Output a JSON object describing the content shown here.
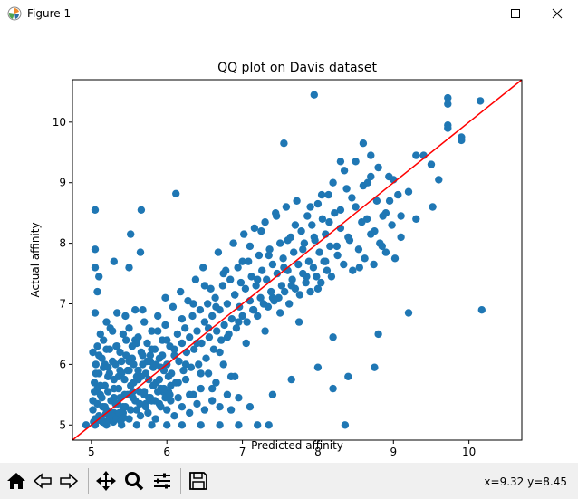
{
  "window": {
    "title": "Figure 1",
    "icons": {
      "app": "matplotlib-icon",
      "minimize": "minimize-icon",
      "maximize": "maximize-icon",
      "close": "close-icon"
    }
  },
  "toolbar": {
    "buttons": [
      {
        "name": "home-icon"
      },
      {
        "name": "back-arrow-icon"
      },
      {
        "name": "forward-arrow-icon"
      },
      {
        "name": "pan-icon"
      },
      {
        "name": "zoom-icon"
      },
      {
        "name": "configure-subplots-icon"
      },
      {
        "name": "save-icon"
      }
    ],
    "coords": "x=9.32 y=8.45"
  },
  "chart_data": {
    "type": "scatter",
    "title": "QQ plot on Davis dataset",
    "xlabel": "Predicted affinity",
    "ylabel": "Actual affinity",
    "xlim": [
      4.75,
      10.7
    ],
    "ylim": [
      4.75,
      10.7
    ],
    "xticks": [
      "5",
      "6",
      "7",
      "8",
      "9",
      "10"
    ],
    "yticks": [
      "5",
      "6",
      "7",
      "8",
      "9",
      "10"
    ],
    "grid": false,
    "marker_color": "#1f77b4",
    "reference_line": {
      "color": "#ff0000",
      "x": [
        4.75,
        10.7
      ],
      "y": [
        4.75,
        10.7
      ]
    },
    "points": [
      [
        4.93,
        5.0
      ],
      [
        5.05,
        5.0
      ],
      [
        5.2,
        5.0
      ],
      [
        5.4,
        5.0
      ],
      [
        5.6,
        5.0
      ],
      [
        5.8,
        5.0
      ],
      [
        6.0,
        5.0
      ],
      [
        6.2,
        5.0
      ],
      [
        6.45,
        5.0
      ],
      [
        6.7,
        5.0
      ],
      [
        6.95,
        5.0
      ],
      [
        7.2,
        5.0
      ],
      [
        7.35,
        5.0
      ],
      [
        8.36,
        5.0
      ],
      [
        5.05,
        8.55
      ],
      [
        5.05,
        7.9
      ],
      [
        5.05,
        7.6
      ],
      [
        5.08,
        7.2
      ],
      [
        5.05,
        6.85
      ],
      [
        5.1,
        7.45
      ],
      [
        5.3,
        7.7
      ],
      [
        5.5,
        7.6
      ],
      [
        5.52,
        8.15
      ],
      [
        5.66,
        8.55
      ],
      [
        5.65,
        7.85
      ],
      [
        5.02,
        6.2
      ],
      [
        5.08,
        5.6
      ],
      [
        5.12,
        6.5
      ],
      [
        5.15,
        5.3
      ],
      [
        5.18,
        6.0
      ],
      [
        5.22,
        5.8
      ],
      [
        5.25,
        6.6
      ],
      [
        5.3,
        5.45
      ],
      [
        5.33,
        6.3
      ],
      [
        5.38,
        5.9
      ],
      [
        5.42,
        5.2
      ],
      [
        5.45,
        6.8
      ],
      [
        5.5,
        6.05
      ],
      [
        5.55,
        5.55
      ],
      [
        5.58,
        6.4
      ],
      [
        5.62,
        5.75
      ],
      [
        5.68,
        6.9
      ],
      [
        5.72,
        5.35
      ],
      [
        5.78,
        6.15
      ],
      [
        5.82,
        5.65
      ],
      [
        5.88,
        6.55
      ],
      [
        5.92,
        5.95
      ],
      [
        5.98,
        7.1
      ],
      [
        6.05,
        5.4
      ],
      [
        6.1,
        6.25
      ],
      [
        6.15,
        5.7
      ],
      [
        6.2,
        6.75
      ],
      [
        6.25,
        6.0
      ],
      [
        6.3,
        5.5
      ],
      [
        6.35,
        7.0
      ],
      [
        6.4,
        6.35
      ],
      [
        6.45,
        5.85
      ],
      [
        6.5,
        7.3
      ],
      [
        6.55,
        6.6
      ],
      [
        6.6,
        5.6
      ],
      [
        6.65,
        6.95
      ],
      [
        6.7,
        6.2
      ],
      [
        6.75,
        7.5
      ],
      [
        6.8,
        6.45
      ],
      [
        6.85,
        5.8
      ],
      [
        6.9,
        7.15
      ],
      [
        6.95,
        6.7
      ],
      [
        7.0,
        7.7
      ],
      [
        7.05,
        6.35
      ],
      [
        7.1,
        7.95
      ],
      [
        7.15,
        6.9
      ],
      [
        7.2,
        7.4
      ],
      [
        7.25,
        8.2
      ],
      [
        7.3,
        6.55
      ],
      [
        7.35,
        7.8
      ],
      [
        7.4,
        7.1
      ],
      [
        7.45,
        8.45
      ],
      [
        7.5,
        6.85
      ],
      [
        7.55,
        7.6
      ],
      [
        7.6,
        8.05
      ],
      [
        7.65,
        7.3
      ],
      [
        7.7,
        8.3
      ],
      [
        7.75,
        6.7
      ],
      [
        7.8,
        7.9
      ],
      [
        7.85,
        7.45
      ],
      [
        7.9,
        8.6
      ],
      [
        7.95,
        8.1
      ],
      [
        8.0,
        7.25
      ],
      [
        8.05,
        8.8
      ],
      [
        8.1,
        7.7
      ],
      [
        8.15,
        8.35
      ],
      [
        8.2,
        9.0
      ],
      [
        8.25,
        7.95
      ],
      [
        8.3,
        8.55
      ],
      [
        8.35,
        9.2
      ],
      [
        8.4,
        8.1
      ],
      [
        8.45,
        8.75
      ],
      [
        8.5,
        9.35
      ],
      [
        8.55,
        7.6
      ],
      [
        8.6,
        8.95
      ],
      [
        8.65,
        8.4
      ],
      [
        8.7,
        9.1
      ],
      [
        8.75,
        8.2
      ],
      [
        8.8,
        9.25
      ],
      [
        8.9,
        8.5
      ],
      [
        9.0,
        9.05
      ],
      [
        8.85,
        7.95
      ],
      [
        8.95,
        8.7
      ],
      [
        9.1,
        8.45
      ],
      [
        9.2,
        8.85
      ],
      [
        9.3,
        9.45
      ],
      [
        9.4,
        9.45
      ],
      [
        9.5,
        9.3
      ],
      [
        9.6,
        9.05
      ],
      [
        9.52,
        8.6
      ],
      [
        9.3,
        8.4
      ],
      [
        9.2,
        6.85
      ],
      [
        9.72,
        10.4
      ],
      [
        9.72,
        10.3
      ],
      [
        9.72,
        9.95
      ],
      [
        9.72,
        9.9
      ],
      [
        9.9,
        9.75
      ],
      [
        9.9,
        9.7
      ],
      [
        10.15,
        10.35
      ],
      [
        10.17,
        6.9
      ],
      [
        7.95,
        10.45
      ],
      [
        7.55,
        9.65
      ],
      [
        6.12,
        8.82
      ],
      [
        8.6,
        9.65
      ],
      [
        8.7,
        9.45
      ],
      [
        8.3,
        9.35
      ],
      [
        8.2,
        6.45
      ],
      [
        8.8,
        6.5
      ],
      [
        8.0,
        5.95
      ],
      [
        8.2,
        5.6
      ],
      [
        8.75,
        5.95
      ],
      [
        8.4,
        5.8
      ],
      [
        7.4,
        5.5
      ],
      [
        7.65,
        5.75
      ],
      [
        7.1,
        5.3
      ],
      [
        5.05,
        5.1
      ],
      [
        5.1,
        5.15
      ],
      [
        5.15,
        5.05
      ],
      [
        5.2,
        5.25
      ],
      [
        5.25,
        5.1
      ],
      [
        5.3,
        5.2
      ],
      [
        5.35,
        5.35
      ],
      [
        5.4,
        5.15
      ],
      [
        5.45,
        5.3
      ],
      [
        5.5,
        5.1
      ],
      [
        5.55,
        5.45
      ],
      [
        5.6,
        5.25
      ],
      [
        5.65,
        5.15
      ],
      [
        5.7,
        5.5
      ],
      [
        5.75,
        5.2
      ],
      [
        5.8,
        5.4
      ],
      [
        5.85,
        5.1
      ],
      [
        5.9,
        5.35
      ],
      [
        5.95,
        5.55
      ],
      [
        6.0,
        5.25
      ],
      [
        6.05,
        5.65
      ],
      [
        6.1,
        5.15
      ],
      [
        6.15,
        5.45
      ],
      [
        6.2,
        5.3
      ],
      [
        6.25,
        5.75
      ],
      [
        6.3,
        5.2
      ],
      [
        6.35,
        5.5
      ],
      [
        6.4,
        5.35
      ],
      [
        6.45,
        5.6
      ],
      [
        6.5,
        5.25
      ],
      [
        6.55,
        5.85
      ],
      [
        6.6,
        5.4
      ],
      [
        6.65,
        5.7
      ],
      [
        6.7,
        5.3
      ],
      [
        6.75,
        6.0
      ],
      [
        6.8,
        5.5
      ],
      [
        6.85,
        5.25
      ],
      [
        6.9,
        5.8
      ],
      [
        6.95,
        5.45
      ],
      [
        5.02,
        5.4
      ],
      [
        5.04,
        5.7
      ],
      [
        5.06,
        6.0
      ],
      [
        5.08,
        6.3
      ],
      [
        5.1,
        5.85
      ],
      [
        5.12,
        5.5
      ],
      [
        5.14,
        6.1
      ],
      [
        5.16,
        6.4
      ],
      [
        5.18,
        5.65
      ],
      [
        5.2,
        6.7
      ],
      [
        5.22,
        5.95
      ],
      [
        5.24,
        6.25
      ],
      [
        5.26,
        5.4
      ],
      [
        5.28,
        6.55
      ],
      [
        5.3,
        5.75
      ],
      [
        5.32,
        6.0
      ],
      [
        5.34,
        6.85
      ],
      [
        5.36,
        5.6
      ],
      [
        5.38,
        6.2
      ],
      [
        5.4,
        5.85
      ],
      [
        5.42,
        6.5
      ],
      [
        5.44,
        5.5
      ],
      [
        5.46,
        6.15
      ],
      [
        5.48,
        5.9
      ],
      [
        5.5,
        6.6
      ],
      [
        5.52,
        5.65
      ],
      [
        5.54,
        6.3
      ],
      [
        5.56,
        6.0
      ],
      [
        5.58,
        6.9
      ],
      [
        5.6,
        5.8
      ],
      [
        5.62,
        6.45
      ],
      [
        5.64,
        5.55
      ],
      [
        5.66,
        6.2
      ],
      [
        5.68,
        6.0
      ],
      [
        5.7,
        6.7
      ],
      [
        5.72,
        5.85
      ],
      [
        5.74,
        6.35
      ],
      [
        5.76,
        5.45
      ],
      [
        5.78,
        6.05
      ],
      [
        5.8,
        6.55
      ],
      [
        5.82,
        5.95
      ],
      [
        5.84,
        6.25
      ],
      [
        5.86,
        5.7
      ],
      [
        5.88,
        6.8
      ],
      [
        5.9,
        6.1
      ],
      [
        5.92,
        5.6
      ],
      [
        5.94,
        6.4
      ],
      [
        5.96,
        5.9
      ],
      [
        5.98,
        6.65
      ],
      [
        6.0,
        6.0
      ],
      [
        6.02,
        5.55
      ],
      [
        6.04,
        6.3
      ],
      [
        6.06,
        5.85
      ],
      [
        6.08,
        6.95
      ],
      [
        6.1,
        6.15
      ],
      [
        6.12,
        5.7
      ],
      [
        6.14,
        6.5
      ],
      [
        6.16,
        6.05
      ],
      [
        6.18,
        7.2
      ],
      [
        6.2,
        6.35
      ],
      [
        6.22,
        5.9
      ],
      [
        6.24,
        6.6
      ],
      [
        6.26,
        6.2
      ],
      [
        6.28,
        7.05
      ],
      [
        6.3,
        6.45
      ],
      [
        6.32,
        5.95
      ],
      [
        6.34,
        6.8
      ],
      [
        6.36,
        6.25
      ],
      [
        6.38,
        7.4
      ],
      [
        6.4,
        6.55
      ],
      [
        6.42,
        6.0
      ],
      [
        6.44,
        6.9
      ],
      [
        6.46,
        6.35
      ],
      [
        6.48,
        7.6
      ],
      [
        6.5,
        6.7
      ],
      [
        6.52,
        6.1
      ],
      [
        6.54,
        7.0
      ],
      [
        6.56,
        6.45
      ],
      [
        6.58,
        7.25
      ],
      [
        6.6,
        6.8
      ],
      [
        6.62,
        6.25
      ],
      [
        6.64,
        7.1
      ],
      [
        6.66,
        6.55
      ],
      [
        6.68,
        7.85
      ],
      [
        6.7,
        6.9
      ],
      [
        6.72,
        6.4
      ],
      [
        6.74,
        7.3
      ],
      [
        6.76,
        6.65
      ],
      [
        6.78,
        7.55
      ],
      [
        6.8,
        7.0
      ],
      [
        6.82,
        6.5
      ],
      [
        6.84,
        7.4
      ],
      [
        6.86,
        6.75
      ],
      [
        6.88,
        8.0
      ],
      [
        6.9,
        7.15
      ],
      [
        6.92,
        6.6
      ],
      [
        6.94,
        7.6
      ],
      [
        6.96,
        6.95
      ],
      [
        6.98,
        7.35
      ],
      [
        7.0,
        6.8
      ],
      [
        7.02,
        8.15
      ],
      [
        7.04,
        7.25
      ],
      [
        7.06,
        6.7
      ],
      [
        7.08,
        7.7
      ],
      [
        7.1,
        7.05
      ],
      [
        7.12,
        7.45
      ],
      [
        7.14,
        6.9
      ],
      [
        7.16,
        8.25
      ],
      [
        7.18,
        7.3
      ],
      [
        7.2,
        6.8
      ],
      [
        7.22,
        7.8
      ],
      [
        7.24,
        7.1
      ],
      [
        7.26,
        7.55
      ],
      [
        7.28,
        7.0
      ],
      [
        7.3,
        8.35
      ],
      [
        7.32,
        7.4
      ],
      [
        7.34,
        6.95
      ],
      [
        7.36,
        7.9
      ],
      [
        7.38,
        7.2
      ],
      [
        7.4,
        7.65
      ],
      [
        7.42,
        7.05
      ],
      [
        7.44,
        8.5
      ],
      [
        7.46,
        7.5
      ],
      [
        7.48,
        7.1
      ],
      [
        7.5,
        8.0
      ],
      [
        7.52,
        7.3
      ],
      [
        7.54,
        7.75
      ],
      [
        7.56,
        7.2
      ],
      [
        7.58,
        8.6
      ],
      [
        7.6,
        7.55
      ],
      [
        7.62,
        7.0
      ],
      [
        7.64,
        8.1
      ],
      [
        7.66,
        7.4
      ],
      [
        7.68,
        7.85
      ],
      [
        7.7,
        7.25
      ],
      [
        7.72,
        8.7
      ],
      [
        7.74,
        7.65
      ],
      [
        7.76,
        7.15
      ],
      [
        7.78,
        8.2
      ],
      [
        7.8,
        7.5
      ],
      [
        7.82,
        8.0
      ],
      [
        7.84,
        7.35
      ],
      [
        7.86,
        8.45
      ],
      [
        7.88,
        7.7
      ],
      [
        7.9,
        7.2
      ],
      [
        7.92,
        8.3
      ],
      [
        7.94,
        7.6
      ],
      [
        7.96,
        8.05
      ],
      [
        7.98,
        7.45
      ],
      [
        8.0,
        8.65
      ],
      [
        8.02,
        7.85
      ],
      [
        8.04,
        7.35
      ],
      [
        8.06,
        8.4
      ],
      [
        8.08,
        7.7
      ],
      [
        8.1,
        8.15
      ],
      [
        8.12,
        7.55
      ],
      [
        8.14,
        8.8
      ],
      [
        8.16,
        7.95
      ],
      [
        8.18,
        7.45
      ],
      [
        8.22,
        8.5
      ],
      [
        8.26,
        7.8
      ],
      [
        8.3,
        8.25
      ],
      [
        8.34,
        7.65
      ],
      [
        8.38,
        8.9
      ],
      [
        8.42,
        8.05
      ],
      [
        8.46,
        7.55
      ],
      [
        8.5,
        8.6
      ],
      [
        8.54,
        7.9
      ],
      [
        8.58,
        8.35
      ],
      [
        8.62,
        7.75
      ],
      [
        8.66,
        9.0
      ],
      [
        8.7,
        8.15
      ],
      [
        8.74,
        7.65
      ],
      [
        8.78,
        8.7
      ],
      [
        8.82,
        8.0
      ],
      [
        8.86,
        8.45
      ],
      [
        8.9,
        7.85
      ],
      [
        8.94,
        9.1
      ],
      [
        8.98,
        8.3
      ],
      [
        9.02,
        7.75
      ],
      [
        9.06,
        8.8
      ],
      [
        9.1,
        8.1
      ],
      [
        5.02,
        5.25
      ],
      [
        5.04,
        5.55
      ],
      [
        5.06,
        5.85
      ],
      [
        5.08,
        5.35
      ],
      [
        5.1,
        6.15
      ],
      [
        5.12,
        5.65
      ],
      [
        5.14,
        5.45
      ],
      [
        5.16,
        5.95
      ],
      [
        5.18,
        5.3
      ],
      [
        5.2,
        6.25
      ],
      [
        5.22,
        5.55
      ],
      [
        5.24,
        5.85
      ],
      [
        5.26,
        5.2
      ],
      [
        5.28,
        6.05
      ],
      [
        5.3,
        5.6
      ],
      [
        5.32,
        5.35
      ],
      [
        5.34,
        6.3
      ],
      [
        5.36,
        5.8
      ],
      [
        5.38,
        5.45
      ],
      [
        5.4,
        6.05
      ],
      [
        5.42,
        5.3
      ],
      [
        5.44,
        5.75
      ],
      [
        5.46,
        6.4
      ],
      [
        5.48,
        5.5
      ],
      [
        5.5,
        5.9
      ],
      [
        5.52,
        5.25
      ],
      [
        5.54,
        6.1
      ],
      [
        5.56,
        5.7
      ],
      [
        5.58,
        5.4
      ],
      [
        5.6,
        6.35
      ],
      [
        5.62,
        5.9
      ],
      [
        5.64,
        5.35
      ],
      [
        5.66,
        5.8
      ],
      [
        5.68,
        6.15
      ],
      [
        5.7,
        5.55
      ],
      [
        5.72,
        5.3
      ],
      [
        5.74,
        6.05
      ],
      [
        5.76,
        5.75
      ],
      [
        5.78,
        5.45
      ],
      [
        5.8,
        6.25
      ],
      [
        5.82,
        5.65
      ],
      [
        5.84,
        5.4
      ],
      [
        5.86,
        6.0
      ],
      [
        5.88,
        5.55
      ],
      [
        5.9,
        5.75
      ],
      [
        5.92,
        5.3
      ],
      [
        5.94,
        6.15
      ],
      [
        5.96,
        5.6
      ],
      [
        5.98,
        5.45
      ],
      [
        6.0,
        6.4
      ],
      [
        6.02,
        5.8
      ],
      [
        6.04,
        5.5
      ],
      [
        5.03,
        5.05
      ],
      [
        5.07,
        5.1
      ],
      [
        5.11,
        5.08
      ],
      [
        5.13,
        5.12
      ],
      [
        5.17,
        5.05
      ],
      [
        5.19,
        5.18
      ],
      [
        5.23,
        5.08
      ],
      [
        5.27,
        5.15
      ],
      [
        5.29,
        5.05
      ],
      [
        5.33,
        5.1
      ],
      [
        5.37,
        5.2
      ],
      [
        5.39,
        5.06
      ],
      [
        5.43,
        5.12
      ]
    ]
  }
}
